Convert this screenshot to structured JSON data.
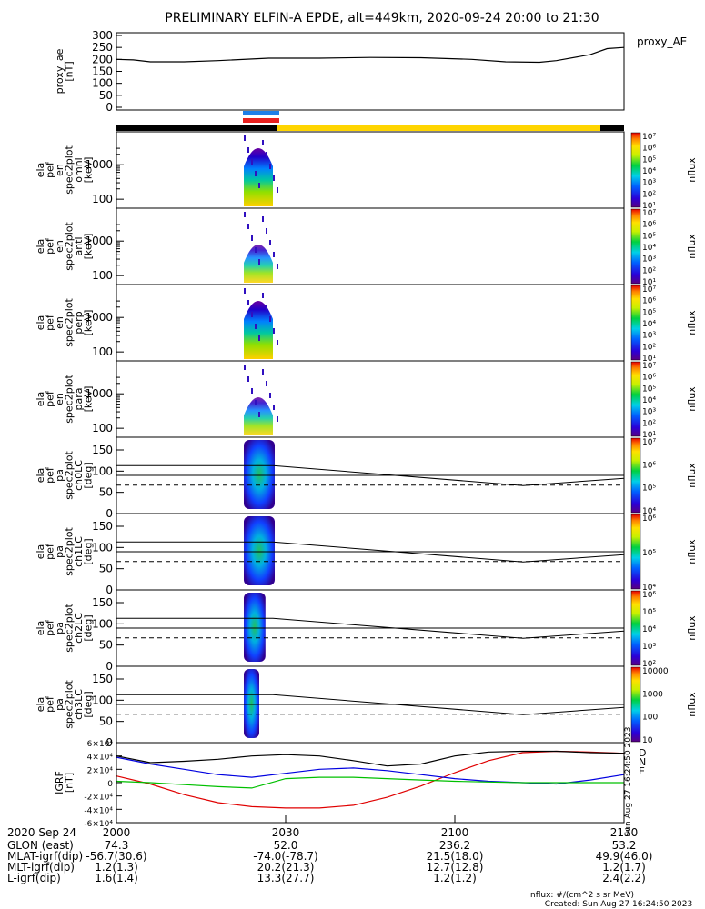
{
  "title": "PRELIMINARY ELFIN-A EPDE, alt=449km, 2020-09-24 20:00 to 21:30",
  "colors": {
    "ae_line": "#000000",
    "bar_black": "#000000",
    "bar_yellow": "#ffd500",
    "bar_blue": "#1e7fe8",
    "bar_red": "#e8201e",
    "igrf_d": "#e00000",
    "igrf_n": "#0000e0",
    "igrf_e": "#00c000",
    "igrf_total": "#000000"
  },
  "chart_data": [
    {
      "type": "line",
      "id": "proxy_ae",
      "ylabel": [
        "proxy_ae",
        "[nT]"
      ],
      "legend": "proxy_AE",
      "yticks": [
        "0",
        "50",
        "100",
        "150",
        "200",
        "250",
        "300"
      ],
      "ylim": [
        0,
        300
      ],
      "x_hours": [
        0,
        0.05,
        0.1,
        0.2,
        0.3,
        0.45,
        0.6,
        0.75,
        0.9,
        1.05,
        1.15,
        1.25,
        1.3,
        1.4,
        1.45,
        1.5
      ],
      "values": [
        200,
        198,
        190,
        190,
        195,
        205,
        205,
        208,
        207,
        200,
        190,
        188,
        195,
        220,
        245,
        250
      ]
    },
    {
      "type": "heatmap",
      "id": "spec_omni",
      "ylabel": [
        "ela",
        "pef",
        "en",
        "spec2plot",
        "omni",
        "[keV]"
      ],
      "yticks": [
        "100",
        "1000"
      ],
      "colorbar": {
        "label": "nflux",
        "ticks": [
          "10¹",
          "10²",
          "10³",
          "10⁴",
          "10⁵",
          "10⁶",
          "10⁷"
        ]
      }
    },
    {
      "type": "heatmap",
      "id": "spec_anti",
      "ylabel": [
        "ela",
        "pef",
        "en",
        "spec2plot",
        "anti",
        "[keV]"
      ],
      "yticks": [
        "100",
        "1000"
      ],
      "colorbar": {
        "label": "nflux",
        "ticks": [
          "10¹",
          "10²",
          "10³",
          "10⁴",
          "10⁵",
          "10⁶",
          "10⁷"
        ]
      }
    },
    {
      "type": "heatmap",
      "id": "spec_perp",
      "ylabel": [
        "ela",
        "pef",
        "en",
        "spec2plot",
        "perp",
        "[keV]"
      ],
      "yticks": [
        "100",
        "1000"
      ],
      "colorbar": {
        "label": "nflux",
        "ticks": [
          "10¹",
          "10²",
          "10³",
          "10⁴",
          "10⁵",
          "10⁶",
          "10⁷"
        ]
      }
    },
    {
      "type": "heatmap",
      "id": "spec_para",
      "ylabel": [
        "ela",
        "pef",
        "en",
        "spec2plot",
        "para",
        "[keV]"
      ],
      "yticks": [
        "100",
        "1000"
      ],
      "colorbar": {
        "label": "nflux",
        "ticks": [
          "10¹",
          "10²",
          "10³",
          "10⁴",
          "10⁵",
          "10⁶",
          "10⁷"
        ]
      }
    },
    {
      "type": "heatmap",
      "id": "pa_ch0",
      "ylabel": [
        "ela",
        "pef",
        "pa",
        "spec2plot",
        "ch0LC",
        "[deg]"
      ],
      "yticks": [
        "0",
        "50",
        "100",
        "150"
      ],
      "ylim": [
        0,
        180
      ],
      "colorbar": {
        "label": "nflux",
        "ticks": [
          "10⁴",
          "10⁵",
          "10⁶",
          "10⁷"
        ]
      }
    },
    {
      "type": "heatmap",
      "id": "pa_ch1",
      "ylabel": [
        "ela",
        "pef",
        "pa",
        "spec2plot",
        "ch1LC",
        "[deg]"
      ],
      "yticks": [
        "0",
        "50",
        "100",
        "150"
      ],
      "ylim": [
        0,
        180
      ],
      "colorbar": {
        "label": "nflux",
        "ticks": [
          "10⁴",
          "10⁵",
          "10⁶"
        ]
      }
    },
    {
      "type": "heatmap",
      "id": "pa_ch2",
      "ylabel": [
        "ela",
        "pef",
        "pa",
        "spec2plot",
        "ch2LC",
        "[deg]"
      ],
      "yticks": [
        "0",
        "50",
        "100",
        "150"
      ],
      "ylim": [
        0,
        180
      ],
      "colorbar": {
        "label": "nflux",
        "ticks": [
          "10²",
          "10³",
          "10⁴",
          "10⁵",
          "10⁶"
        ]
      }
    },
    {
      "type": "heatmap",
      "id": "pa_ch3",
      "ylabel": [
        "ela",
        "pef",
        "pa",
        "spec2plot",
        "ch3LC",
        "[deg]"
      ],
      "yticks": [
        "0",
        "50",
        "100",
        "150"
      ],
      "ylim": [
        0,
        180
      ],
      "colorbar": {
        "label": "nflux",
        "ticks": [
          "10",
          "100",
          "1000",
          "10000"
        ]
      }
    },
    {
      "type": "line",
      "id": "igrf",
      "ylabel": [
        "IGRF",
        "[nT]"
      ],
      "yticks": [
        "-6×10⁴",
        "-4×10⁴",
        "-2×10⁴",
        "0",
        "2×10⁴",
        "4×10⁴",
        "6×10⁴"
      ],
      "ylim": [
        -60000,
        60000
      ],
      "legend": [
        "D",
        "N",
        "E"
      ],
      "x_hours": [
        0,
        0.1,
        0.2,
        0.3,
        0.4,
        0.5,
        0.6,
        0.7,
        0.8,
        0.9,
        1.0,
        1.1,
        1.2,
        1.3,
        1.4,
        1.5
      ],
      "series": [
        {
          "name": "D",
          "values": [
            10000,
            -2000,
            -18000,
            -30000,
            -36000,
            -38000,
            -38000,
            -34000,
            -22000,
            -5000,
            15000,
            33000,
            45000,
            47000,
            46000,
            44000
          ]
        },
        {
          "name": "N",
          "values": [
            38000,
            28000,
            20000,
            12000,
            8000,
            14000,
            20000,
            22000,
            18000,
            12000,
            6000,
            2000,
            0,
            -2000,
            4000,
            12000
          ]
        },
        {
          "name": "E",
          "values": [
            2000,
            0,
            -3000,
            -6000,
            -8000,
            6000,
            8000,
            8000,
            6000,
            4000,
            2000,
            1000,
            0,
            0,
            0,
            0
          ]
        },
        {
          "values": [
            40000,
            30000,
            32000,
            35000,
            40000,
            42000,
            40000,
            33000,
            25000,
            28000,
            40000,
            46000,
            47000,
            47000,
            45000,
            44000
          ]
        }
      ]
    }
  ],
  "xaxis": {
    "date_label": "2020 Sep 24",
    "ticks": [
      "2000",
      "2030",
      "2100",
      "2130"
    ],
    "rows": [
      {
        "label": "GLON (east)",
        "values": [
          "74.3",
          "52.0",
          "236.2",
          "53.2"
        ]
      },
      {
        "label": "MLAT-igrf(dip)",
        "values": [
          "-56.7(30.6)",
          "-74.0(-78.7)",
          "21.5(18.0)",
          "49.9(46.0)"
        ]
      },
      {
        "label": "MLT-igrf(dip)",
        "values": [
          "1.2(1.3)",
          "20.2(21.3)",
          "12.7(12.8)",
          "1.2(1.7)"
        ]
      },
      {
        "label": "L-igrf(dip)",
        "values": [
          "1.6(1.4)",
          "13.3(27.7)",
          "1.2(1.2)",
          "2.4(2.2)"
        ]
      }
    ]
  },
  "footer": {
    "units": "nflux: #/(cm^2 s sr MeV)",
    "created": "Created: Sun Aug 27 16:24:50 2023",
    "side_stamp": "Sun Aug 27 16:24:50 2023"
  }
}
